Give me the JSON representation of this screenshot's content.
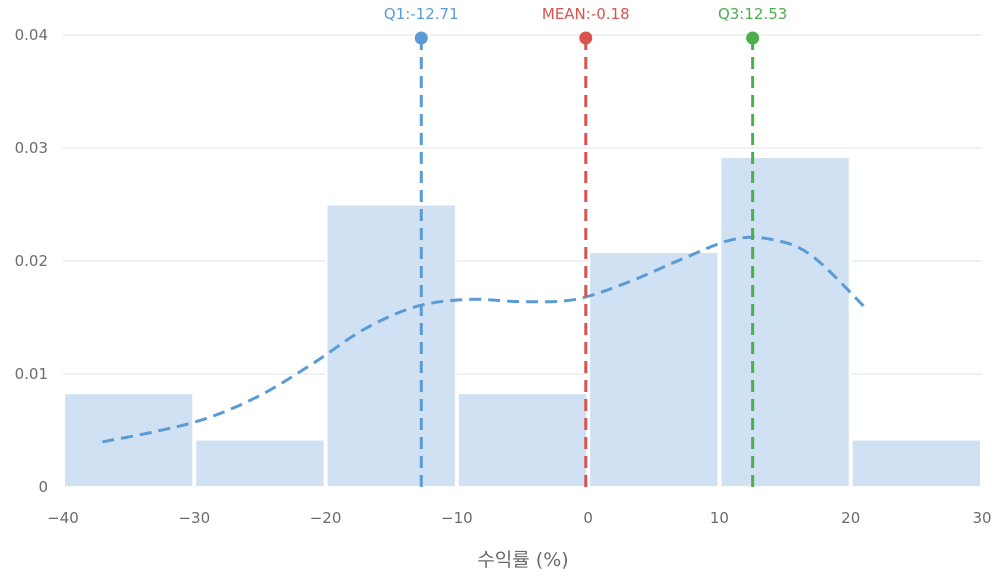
{
  "chart_data": {
    "type": "bar",
    "xlabel": "수익률 (%)",
    "ylabel": "",
    "xlim": [
      -40,
      30
    ],
    "ylim": [
      0,
      0.04
    ],
    "x_ticks": [
      -40,
      -30,
      -20,
      -10,
      0,
      10,
      20,
      30
    ],
    "x_tick_labels": [
      "−40",
      "−30",
      "−20",
      "−10",
      "0",
      "10",
      "20",
      "30"
    ],
    "y_ticks": [
      0,
      0.01,
      0.02,
      0.03,
      0.04
    ],
    "y_tick_labels": [
      "0",
      "0.01",
      "0.02",
      "0.03",
      "0.04"
    ],
    "grid": true,
    "histogram": {
      "bins": [
        {
          "x0": -40,
          "x1": -30,
          "value": 0.0083
        },
        {
          "x0": -30,
          "x1": -20,
          "value": 0.0042
        },
        {
          "x0": -20,
          "x1": -10,
          "value": 0.025
        },
        {
          "x0": -10,
          "x1": 0,
          "value": 0.0083
        },
        {
          "x0": 0,
          "x1": 10,
          "value": 0.0208
        },
        {
          "x0": 10,
          "x1": 20,
          "value": 0.0292
        },
        {
          "x0": 20,
          "x1": 30,
          "value": 0.0042
        }
      ],
      "color": "#cfe1f2"
    },
    "kde": {
      "color": "#5b9bd5",
      "x": [
        -37,
        -33,
        -29,
        -25,
        -21,
        -17,
        -13,
        -9,
        -5,
        -1,
        3,
        7,
        11,
        14,
        17,
        21
      ],
      "y": [
        0.004,
        0.0049,
        0.0061,
        0.0081,
        0.0109,
        0.014,
        0.016,
        0.0166,
        0.0164,
        0.0166,
        0.0181,
        0.0201,
        0.0219,
        0.0219,
        0.0205,
        0.016
      ]
    },
    "reference_lines": [
      {
        "label": "Q1:-12.71",
        "x": -12.71,
        "color": "#5b9bd5"
      },
      {
        "label": "MEAN:-0.18",
        "x": -0.18,
        "color": "#d9534f"
      },
      {
        "label": "Q3:12.53",
        "x": 12.53,
        "color": "#4cae4c"
      }
    ]
  }
}
